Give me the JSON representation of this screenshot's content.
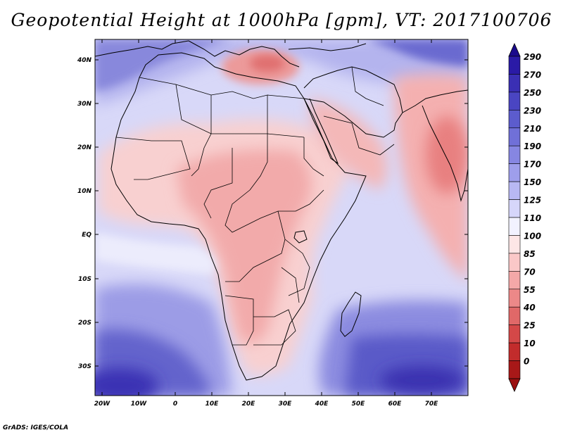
{
  "title": "Geopotential Height at 1000hPa [gpm], VT: 2017100706",
  "credit": "GrADS: IGES/COLA",
  "x_axis_labels": [
    "20W",
    "10W",
    "0",
    "10E",
    "20E",
    "30E",
    "40E",
    "50E",
    "60E",
    "70E"
  ],
  "y_axis_labels": [
    "40N",
    "30N",
    "20N",
    "10N",
    "EQ",
    "10S",
    "20S",
    "30S"
  ],
  "colorbar": {
    "labels": [
      "290",
      "270",
      "250",
      "230",
      "210",
      "190",
      "170",
      "150",
      "125",
      "110",
      "100",
      "85",
      "70",
      "55",
      "40",
      "25",
      "10",
      "0"
    ],
    "colors": [
      "#2a1aa6",
      "#3a2fb4",
      "#4a45c2",
      "#5c5ccd",
      "#7070d8",
      "#8686e2",
      "#9e9eeb",
      "#b8b8f3",
      "#d6d6fa",
      "#f2f2ff",
      "#fde6e6",
      "#fac8c8",
      "#f4a8a8",
      "#ec8888",
      "#e06868",
      "#d44848",
      "#c22c2c",
      "#a81818"
    ],
    "top_arrow_color": "#1a0a8c",
    "bottom_arrow_color": "#9a1010"
  }
}
